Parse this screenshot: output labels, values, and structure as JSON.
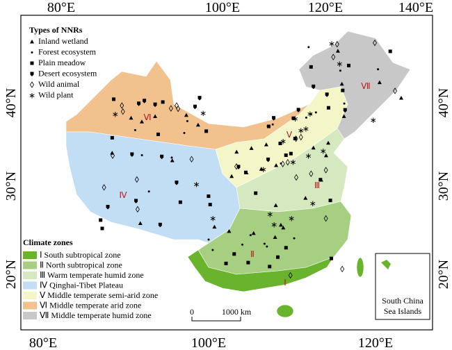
{
  "axes": {
    "top": [
      "80°E",
      "100°E",
      "120°E",
      "140°E"
    ],
    "bottom": [
      "80°E",
      "100°E",
      "120°E"
    ],
    "left": [
      "40°N",
      "30°N",
      "20°N"
    ],
    "right": [
      "40°N",
      "30°N",
      "20°N"
    ]
  },
  "nnr_legend": {
    "title": "Types of NNRs",
    "items": [
      "Inland wetland",
      "Forest ecosystem",
      "Plain meadow",
      "Desert ecosystem",
      "Wild animal",
      "Wild plant"
    ]
  },
  "climate_legend": {
    "title": "Climate zones",
    "items": [
      "Ⅰ South subtropical zone",
      "Ⅱ North subtropical zone",
      "Ⅲ Warm temperate humid zone",
      "Ⅳ Qinghai-Tibet Plateau",
      "Ⅴ Middle temperate semi-arid zone",
      "Ⅵ Middle temperate arid zone",
      "Ⅶ Middle temperate humid zone"
    ]
  },
  "zone_labels": [
    "Ⅰ",
    "Ⅱ",
    "Ⅲ",
    "Ⅳ",
    "Ⅴ",
    "Ⅵ",
    "Ⅶ"
  ],
  "scale_bar": {
    "start": "0",
    "end": "1000 km"
  },
  "inset": {
    "label_lines": [
      "South China",
      "Sea Islands"
    ]
  }
}
